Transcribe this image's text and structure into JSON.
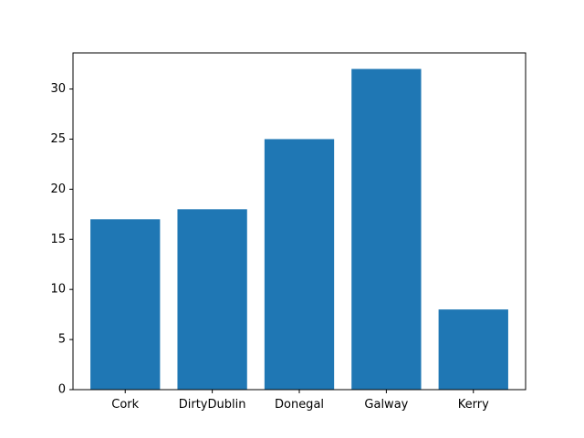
{
  "chart_data": {
    "type": "bar",
    "title": "",
    "xlabel": "",
    "ylabel": "",
    "categories": [
      "Cork",
      "DirtyDublin",
      "Donegal",
      "Galway",
      "Kerry"
    ],
    "values": [
      17,
      18,
      25,
      32,
      8
    ],
    "ylim": [
      0,
      33.6
    ],
    "yticks": [
      0,
      5,
      10,
      15,
      20,
      25,
      30
    ],
    "grid": false,
    "bar_color": "#1f77b4",
    "axis_color": "#000000"
  }
}
